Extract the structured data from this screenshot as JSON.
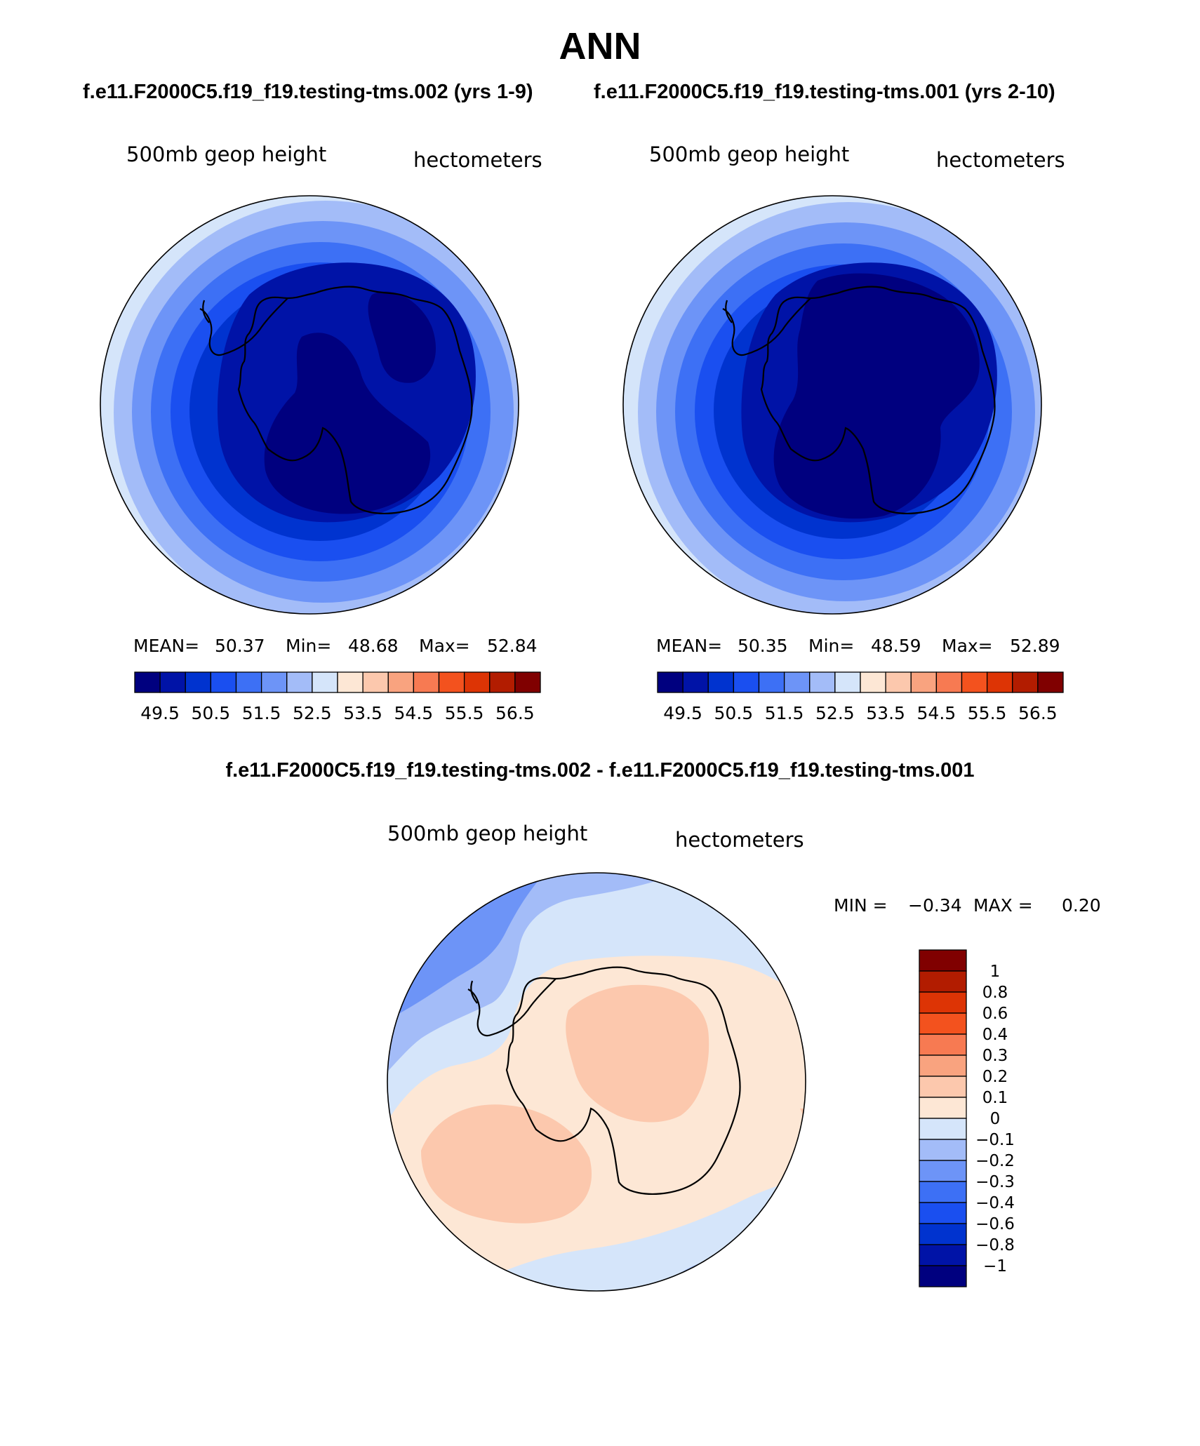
{
  "figure": {
    "title": "ANN",
    "case_a_header": "f.e11.F2000C5.f19_f19.testing-tms.002 (yrs 1-9)",
    "case_b_header": "f.e11.F2000C5.f19_f19.testing-tms.001 (yrs 2-10)",
    "diff_header": "f.e11.F2000C5.f19_f19.testing-tms.002 - f.e11.F2000C5.f19_f19.testing-tms.001"
  },
  "panels": [
    {
      "variable": "500mb geop height",
      "units": "hectometers",
      "stats": {
        "mean_label": "MEAN=",
        "mean": "50.37",
        "min_label": "Min=",
        "min": "48.68",
        "max_label": "Max=",
        "max": "52.84"
      }
    },
    {
      "variable": "500mb geop height",
      "units": "hectometers",
      "stats": {
        "mean_label": "MEAN=",
        "mean": "50.35",
        "min_label": "Min=",
        "min": "48.59",
        "max_label": "Max=",
        "max": "52.89"
      }
    }
  ],
  "diff_panel": {
    "variable": "500mb geop height",
    "units": "hectometers",
    "min_label": "MIN =",
    "min": "−0.34",
    "max_label": "MAX =",
    "max": "0.20"
  },
  "colorbars": {
    "main": {
      "colors": [
        "#00007f",
        "#0013a7",
        "#0033cf",
        "#1a4ff0",
        "#3d70f5",
        "#6d94f7",
        "#a3bcf8",
        "#d5e5fa",
        "#fde7d5",
        "#fcc8ad",
        "#f9a37f",
        "#f77a52",
        "#f3521e",
        "#dd3405",
        "#b21c00",
        "#800000"
      ],
      "tick_labels": [
        "49.5",
        "50.5",
        "51.5",
        "52.5",
        "53.5",
        "54.5",
        "55.5",
        "56.5"
      ]
    },
    "diff": {
      "colors": [
        "#800000",
        "#b21c00",
        "#dd3405",
        "#f3521e",
        "#f77a52",
        "#f9a37f",
        "#fcc8ad",
        "#fde7d5",
        "#d5e5fa",
        "#a3bcf8",
        "#6d94f7",
        "#3d70f5",
        "#1a4ff0",
        "#0033cf",
        "#0013a7",
        "#00007f"
      ],
      "tick_labels": [
        "1",
        "0.8",
        "0.6",
        "0.4",
        "0.3",
        "0.2",
        "0.1",
        "0",
        "−0.1",
        "−0.2",
        "−0.3",
        "−0.4",
        "−0.6",
        "−0.8",
        "−1"
      ]
    }
  },
  "colors": {
    "outline": "#000000",
    "coast": "#000000"
  }
}
